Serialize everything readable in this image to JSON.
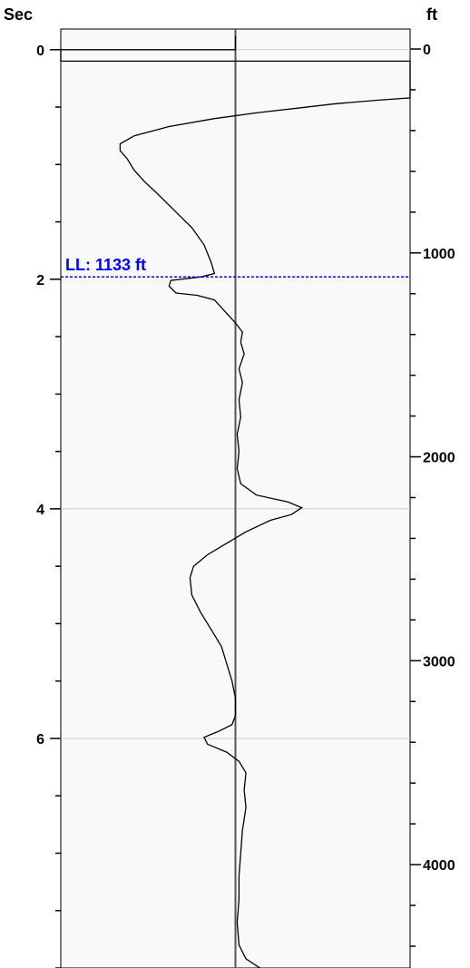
{
  "chart_data": {
    "type": "line",
    "left_axis": {
      "label": "Sec",
      "range": [
        -0.18,
        8.0
      ],
      "major_ticks": [
        0,
        2,
        4,
        6
      ],
      "minor_step": 0.5
    },
    "right_axis": {
      "label": "ft",
      "range": [
        -98,
        4507
      ],
      "major_ticks": [
        0,
        1000,
        2000,
        3000,
        4000
      ],
      "minor_step": 200
    },
    "x_range": [
      -1.0,
      1.0
    ],
    "center_value": 0.0,
    "gridlines_sec": [
      0,
      4,
      6
    ],
    "marker": {
      "label": "LL: 1133 ft",
      "sec": 1.98,
      "color": "#0000ff"
    },
    "colors": {
      "plot_bg": "#f9f9f9",
      "line": "#000000",
      "center_line": "#555555",
      "grid": "#cccccc",
      "marker": "#0000ff"
    },
    "series": [
      {
        "points": [
          {
            "x": 0.0,
            "y": -0.12
          },
          {
            "x": 0.0,
            "y": 0.0
          },
          {
            "x": -1.0,
            "y": 0.0
          },
          {
            "x": -1.0,
            "y": 0.1
          },
          {
            "x": 1.0,
            "y": 0.1
          },
          {
            "x": 1.0,
            "y": 0.42
          },
          {
            "x": 0.82,
            "y": 0.44
          },
          {
            "x": 0.58,
            "y": 0.47
          },
          {
            "x": 0.35,
            "y": 0.51
          },
          {
            "x": 0.12,
            "y": 0.55
          },
          {
            "x": -0.12,
            "y": 0.6
          },
          {
            "x": -0.38,
            "y": 0.67
          },
          {
            "x": -0.58,
            "y": 0.75
          },
          {
            "x": -0.66,
            "y": 0.82
          },
          {
            "x": -0.66,
            "y": 0.88
          },
          {
            "x": -0.62,
            "y": 0.95
          },
          {
            "x": -0.58,
            "y": 1.05
          },
          {
            "x": -0.52,
            "y": 1.15
          },
          {
            "x": -0.45,
            "y": 1.25
          },
          {
            "x": -0.35,
            "y": 1.4
          },
          {
            "x": -0.25,
            "y": 1.55
          },
          {
            "x": -0.18,
            "y": 1.7
          },
          {
            "x": -0.14,
            "y": 1.85
          },
          {
            "x": -0.12,
            "y": 1.95
          },
          {
            "x": -0.2,
            "y": 1.98
          },
          {
            "x": -0.37,
            "y": 2.01
          },
          {
            "x": -0.38,
            "y": 2.06
          },
          {
            "x": -0.34,
            "y": 2.12
          },
          {
            "x": -0.22,
            "y": 2.14
          },
          {
            "x": -0.12,
            "y": 2.18
          },
          {
            "x": -0.06,
            "y": 2.28
          },
          {
            "x": 0.0,
            "y": 2.38
          },
          {
            "x": 0.04,
            "y": 2.46
          },
          {
            "x": 0.03,
            "y": 2.55
          },
          {
            "x": 0.05,
            "y": 2.65
          },
          {
            "x": 0.02,
            "y": 2.78
          },
          {
            "x": 0.04,
            "y": 2.9
          },
          {
            "x": 0.02,
            "y": 3.05
          },
          {
            "x": 0.03,
            "y": 3.2
          },
          {
            "x": 0.01,
            "y": 3.35
          },
          {
            "x": 0.02,
            "y": 3.5
          },
          {
            "x": 0.01,
            "y": 3.65
          },
          {
            "x": 0.03,
            "y": 3.78
          },
          {
            "x": 0.12,
            "y": 3.88
          },
          {
            "x": 0.3,
            "y": 3.94
          },
          {
            "x": 0.38,
            "y": 3.99
          },
          {
            "x": 0.32,
            "y": 4.05
          },
          {
            "x": 0.2,
            "y": 4.1
          },
          {
            "x": 0.06,
            "y": 4.2
          },
          {
            "x": -0.05,
            "y": 4.3
          },
          {
            "x": -0.16,
            "y": 4.4
          },
          {
            "x": -0.24,
            "y": 4.5
          },
          {
            "x": -0.26,
            "y": 4.6
          },
          {
            "x": -0.25,
            "y": 4.75
          },
          {
            "x": -0.2,
            "y": 4.9
          },
          {
            "x": -0.14,
            "y": 5.05
          },
          {
            "x": -0.08,
            "y": 5.2
          },
          {
            "x": -0.05,
            "y": 5.35
          },
          {
            "x": -0.02,
            "y": 5.5
          },
          {
            "x": 0.0,
            "y": 5.65
          },
          {
            "x": 0.0,
            "y": 5.8
          },
          {
            "x": -0.02,
            "y": 5.88
          },
          {
            "x": -0.1,
            "y": 5.94
          },
          {
            "x": -0.18,
            "y": 5.99
          },
          {
            "x": -0.16,
            "y": 6.05
          },
          {
            "x": -0.05,
            "y": 6.12
          },
          {
            "x": 0.02,
            "y": 6.2
          },
          {
            "x": 0.06,
            "y": 6.3
          },
          {
            "x": 0.05,
            "y": 6.45
          },
          {
            "x": 0.06,
            "y": 6.6
          },
          {
            "x": 0.04,
            "y": 6.8
          },
          {
            "x": 0.03,
            "y": 7.0
          },
          {
            "x": 0.02,
            "y": 7.2
          },
          {
            "x": 0.02,
            "y": 7.4
          },
          {
            "x": 0.01,
            "y": 7.6
          },
          {
            "x": 0.02,
            "y": 7.8
          },
          {
            "x": 0.06,
            "y": 7.92
          },
          {
            "x": 0.14,
            "y": 8.0
          }
        ]
      }
    ]
  }
}
